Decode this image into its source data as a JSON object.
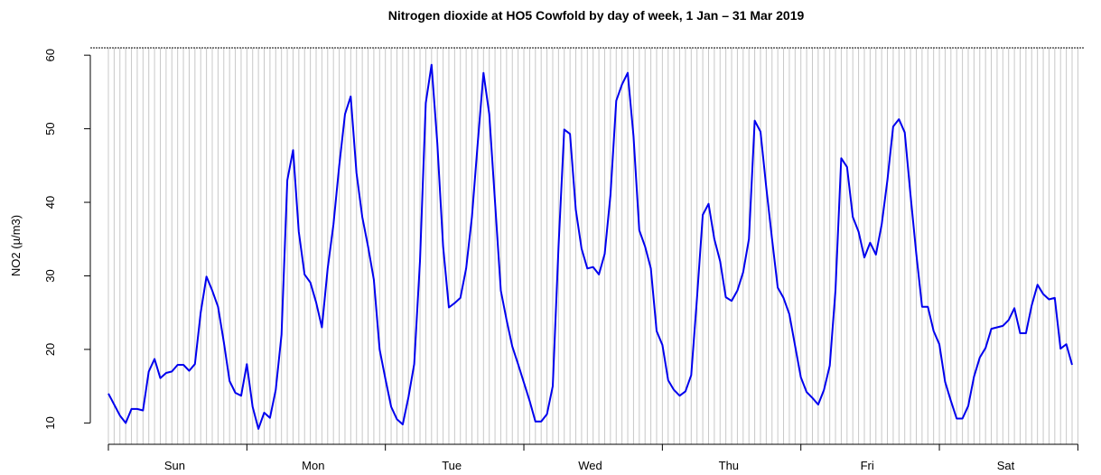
{
  "chart_data": {
    "type": "line",
    "title": "Nitrogen dioxide at HO5 Cowfold by day of week, 1 Jan – 31 Mar 2019",
    "y_label": "NO2 (µ/m3)",
    "categories": [
      "Sun",
      "Mon",
      "Tue",
      "Wed",
      "Thu",
      "Fri",
      "Sat"
    ],
    "color": "#0000ee",
    "values": [
      [
        14,
        12.5,
        11,
        10,
        11.9,
        11.9,
        11.7,
        17,
        18.7,
        16.1,
        16.8,
        17,
        17.9,
        17.9,
        17.1,
        18,
        25,
        29.9,
        28,
        25.8,
        21,
        15.7,
        14.1,
        13.7
      ],
      [
        18,
        12.2,
        9.2,
        11.4,
        10.7,
        14.5,
        22,
        43,
        47.1,
        36,
        30.2,
        29.1,
        26.4,
        23,
        31,
        37,
        45,
        52,
        54.4,
        44,
        38,
        34,
        29.5,
        20
      ],
      [
        16,
        12.2,
        10.5,
        9.8,
        13.5,
        18,
        32,
        53.5,
        58.7,
        48,
        34,
        25.7,
        26.3,
        27,
        31,
        38,
        48,
        57.6,
        52,
        40,
        28,
        24,
        20.4,
        18
      ],
      [
        15.5,
        13,
        10.2,
        10.2,
        11.2,
        15,
        34,
        49.9,
        49.3,
        39,
        33.7,
        31,
        31.2,
        30.2,
        33,
        41,
        53.8,
        56,
        57.6,
        49,
        36.2,
        34,
        31,
        22.5
      ],
      [
        20.6,
        15.8,
        14.5,
        13.7,
        14.3,
        16.5,
        27,
        38.3,
        39.8,
        35,
        32,
        27.1,
        26.6,
        28,
        30.5,
        35,
        51.1,
        49.6,
        42,
        35,
        28.4,
        27,
        24.8,
        20.5
      ],
      [
        16.2,
        14.2,
        13.4,
        12.5,
        14.5,
        17.8,
        28,
        46,
        44.8,
        38,
        36,
        32.5,
        34.5,
        32.9,
        37,
        43,
        50.3,
        51.3,
        49.5,
        41,
        33,
        25.8,
        25.8,
        22.5
      ],
      [
        20.7,
        15.6,
        13,
        10.6,
        10.6,
        12.3,
        16.3,
        18.9,
        20.2,
        22.8,
        23,
        23.2,
        24,
        25.6,
        22.2,
        22.2,
        26,
        28.8,
        27.5,
        26.8,
        27,
        20.1,
        20.7,
        17.9
      ]
    ],
    "ylim": [
      7.1,
      61
    ],
    "yticks": [
      10,
      20,
      30,
      40,
      50,
      60
    ],
    "grid": true
  }
}
